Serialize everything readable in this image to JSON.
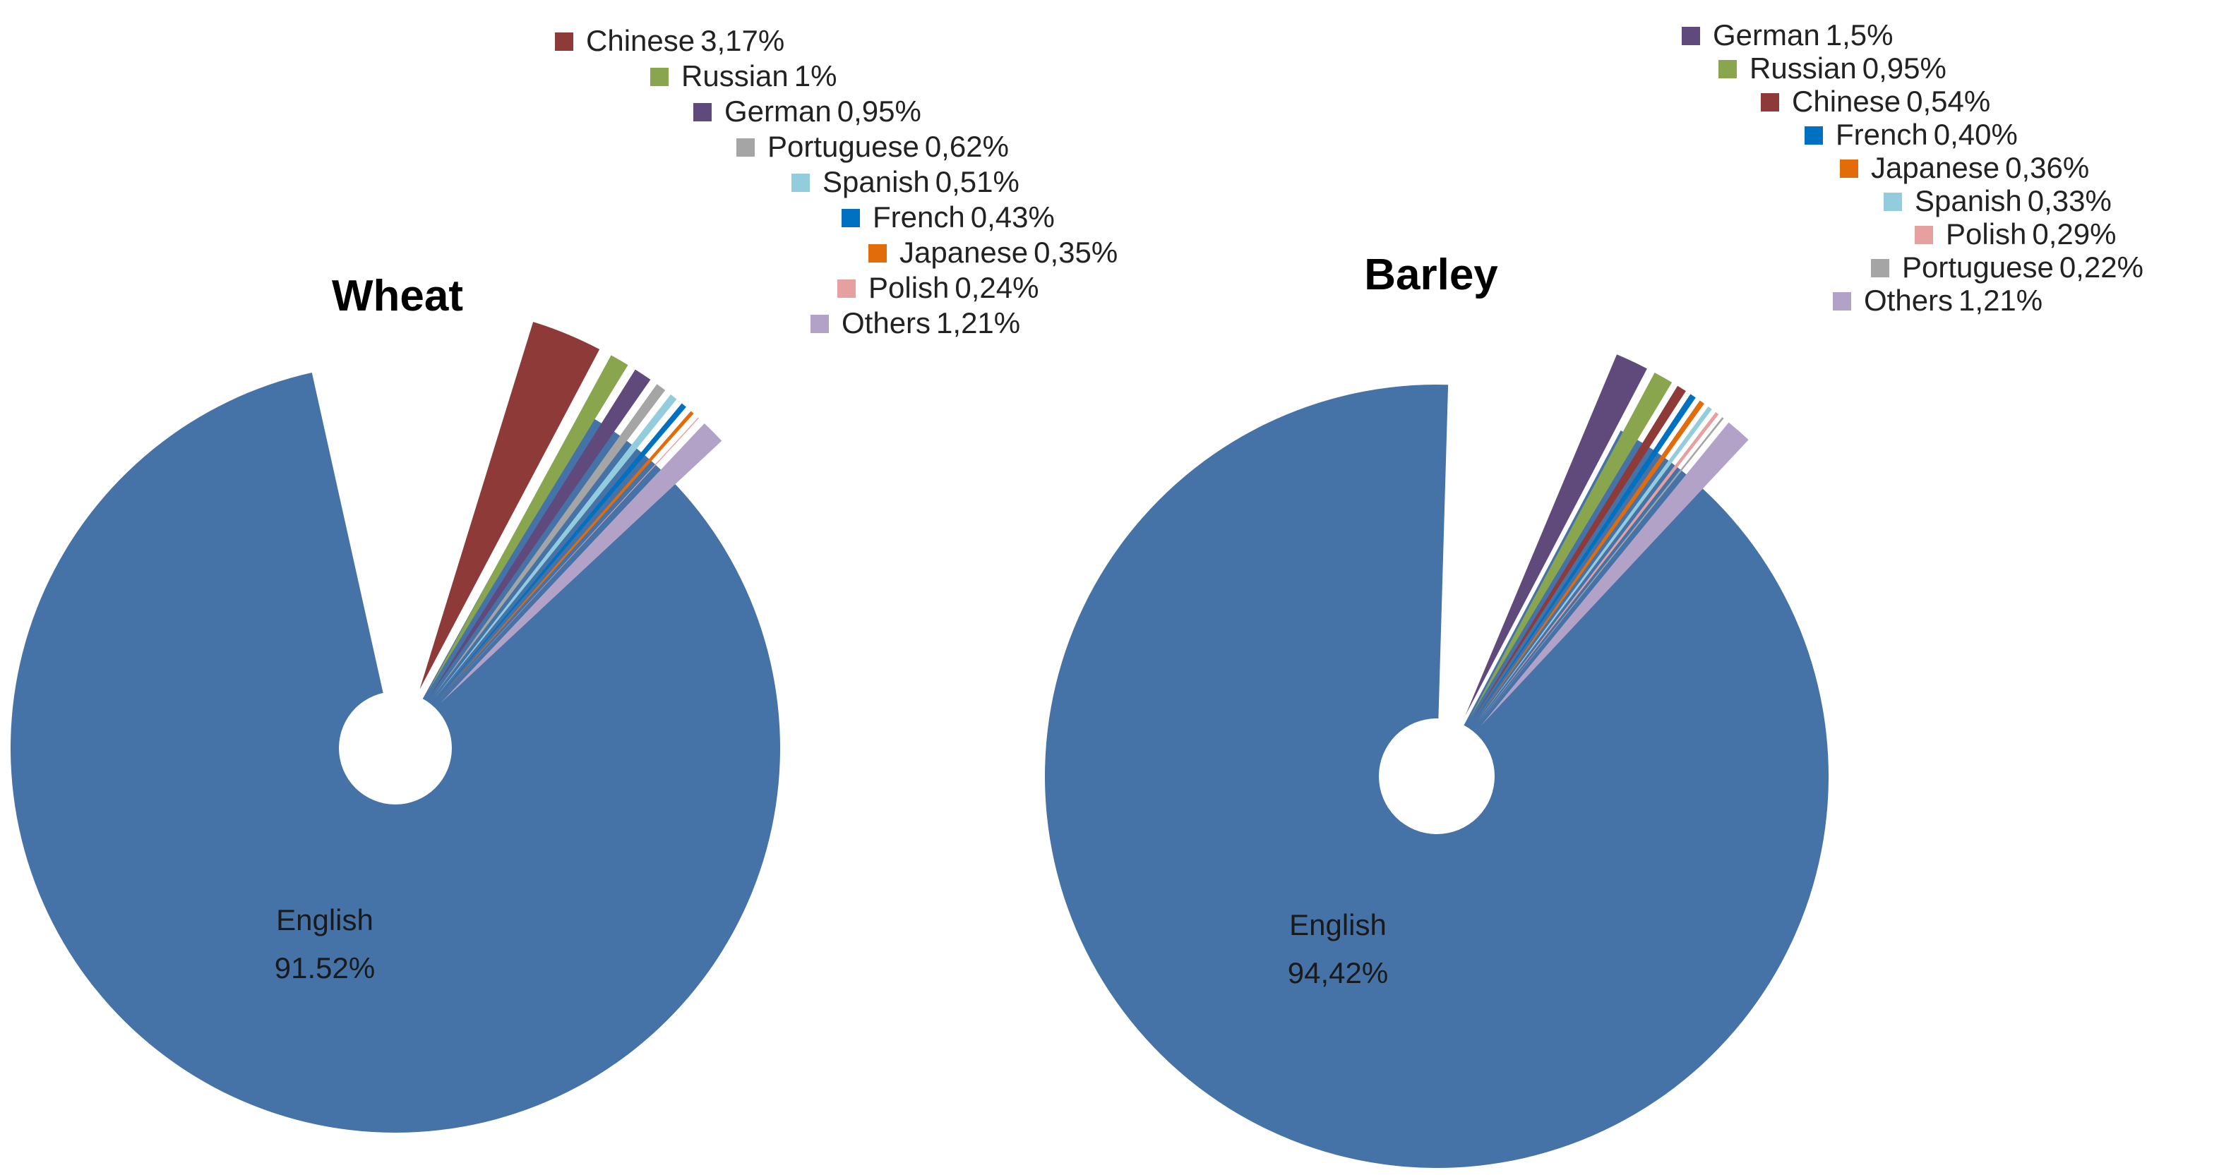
{
  "chart_data": [
    {
      "type": "pie",
      "title": "Wheat",
      "main_slice": {
        "name": "English",
        "value": 91.52,
        "label": "91.52%",
        "color": "#4572A7"
      },
      "slices": [
        {
          "name": "Chinese",
          "value": 3.17,
          "label": "3,17%",
          "color": "#8E3A38"
        },
        {
          "name": "Russian",
          "value": 1.0,
          "label": "1%",
          "color": "#89A54E"
        },
        {
          "name": "German",
          "value": 0.95,
          "label": "0,95%",
          "color": "#604A7B"
        },
        {
          "name": "Portuguese",
          "value": 0.62,
          "label": "0,62%",
          "color": "#A5A5A5"
        },
        {
          "name": "Spanish",
          "value": 0.51,
          "label": "0,51%",
          "color": "#93CDDD"
        },
        {
          "name": "French",
          "value": 0.43,
          "label": "0,43%",
          "color": "#0070C0"
        },
        {
          "name": "Japanese",
          "value": 0.35,
          "label": "0,35%",
          "color": "#E36C0A"
        },
        {
          "name": "Polish",
          "value": 0.24,
          "label": "0,24%",
          "color": "#E6A0A0"
        },
        {
          "name": "Others",
          "value": 1.21,
          "label": "1,21%",
          "color": "#B3A2C7"
        }
      ]
    },
    {
      "type": "pie",
      "title": "Barley",
      "main_slice": {
        "name": "English",
        "value": 94.42,
        "label": "94,42%",
        "color": "#4572A7"
      },
      "slices": [
        {
          "name": "German",
          "value": 1.5,
          "label": "1,5%",
          "color": "#604A7B"
        },
        {
          "name": "Russian",
          "value": 0.95,
          "label": "0,95%",
          "color": "#89A54E"
        },
        {
          "name": "Chinese",
          "value": 0.54,
          "label": "0,54%",
          "color": "#8E3A38"
        },
        {
          "name": "French",
          "value": 0.4,
          "label": "0,40%",
          "color": "#0070C0"
        },
        {
          "name": "Japanese",
          "value": 0.36,
          "label": "0,36%",
          "color": "#E36C0A"
        },
        {
          "name": "Spanish",
          "value": 0.33,
          "label": "0,33%",
          "color": "#93CDDD"
        },
        {
          "name": "Polish",
          "value": 0.29,
          "label": "0,29%",
          "color": "#E6A0A0"
        },
        {
          "name": "Portuguese",
          "value": 0.22,
          "label": "0,22%",
          "color": "#A5A5A5"
        },
        {
          "name": "Others",
          "value": 1.21,
          "label": "1,21%",
          "color": "#B3A2C7"
        }
      ]
    }
  ]
}
